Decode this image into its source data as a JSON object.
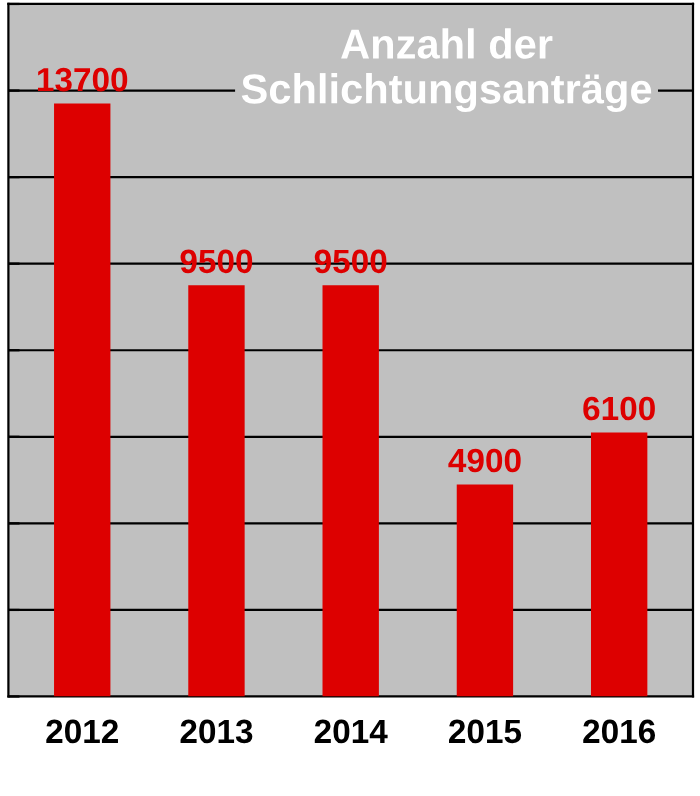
{
  "chart_data": {
    "type": "bar",
    "title": "Anzahl der\nSchlichtungsanträge",
    "categories": [
      "2012",
      "2013",
      "2014",
      "2015",
      "2016"
    ],
    "values": [
      13700,
      9500,
      9500,
      4900,
      6100
    ],
    "color": "#dd0000",
    "ylim": [
      0,
      16000
    ],
    "yticks": [
      {
        "value": 0,
        "label": null
      },
      {
        "value": 2000,
        "label": null
      },
      {
        "value": 4000,
        "label": null
      },
      {
        "value": 6000,
        "label": null
      },
      {
        "value": 8000,
        "label": null
      },
      {
        "value": 10000,
        "label": null
      },
      {
        "value": 12000,
        "label": null
      },
      {
        "value": 14000,
        "label": null
      },
      {
        "value": 16000,
        "label": null
      }
    ],
    "tick_labels": "x",
    "grid": "y",
    "data_labels": true
  }
}
